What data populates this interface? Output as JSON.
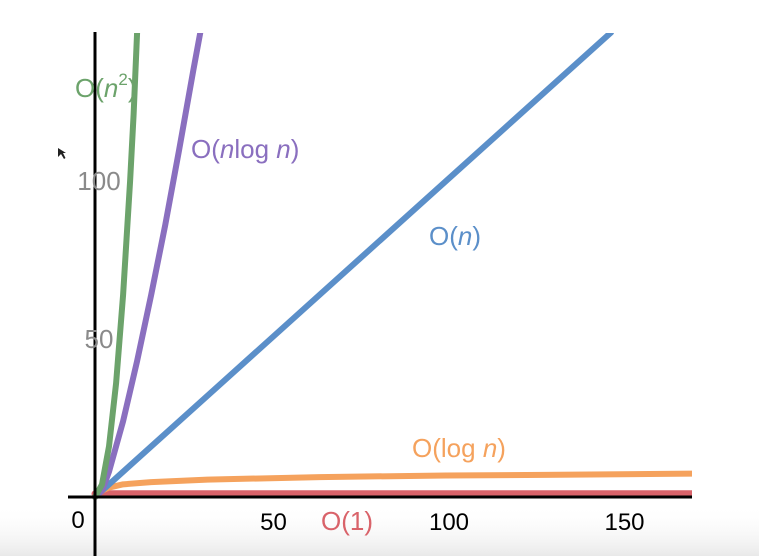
{
  "chart_data": {
    "type": "line",
    "title": "",
    "xlabel": "",
    "ylabel": "",
    "xlim": [
      0,
      170
    ],
    "ylim": [
      0,
      147
    ],
    "x_ticks": [
      "50",
      "100",
      "150"
    ],
    "x_tick_values": [
      50,
      100,
      150
    ],
    "y_ticks": [
      "50",
      "100"
    ],
    "y_tick_values": [
      50,
      100
    ],
    "origin_label": "0",
    "grid": false,
    "series": [
      {
        "name": "O(1)",
        "label_parts": [
          {
            "text": "O(",
            "italic": false
          },
          {
            "text": "1",
            "italic": false
          },
          {
            "text": ")",
            "italic": false
          }
        ],
        "color": "#d9636a",
        "x": [
          0,
          170
        ],
        "y": [
          1,
          1
        ]
      },
      {
        "name": "O(log n)",
        "label_parts": [
          {
            "text": "O(log ",
            "italic": false
          },
          {
            "text": "n",
            "italic": true
          },
          {
            "text": ")",
            "italic": false
          }
        ],
        "color": "#f5a25d",
        "x": [
          0,
          1,
          2,
          4,
          8,
          16,
          32,
          64,
          100,
          128,
          170
        ],
        "y": [
          0,
          1,
          2,
          3,
          4,
          4.7,
          5.5,
          6.3,
          6.8,
          7.0,
          7.4
        ]
      },
      {
        "name": "O(n)",
        "label_parts": [
          {
            "text": "O(",
            "italic": false
          },
          {
            "text": "n",
            "italic": true
          },
          {
            "text": ")",
            "italic": false
          }
        ],
        "color": "#5b8fc9",
        "x": [
          0,
          147
        ],
        "y": [
          0,
          147
        ]
      },
      {
        "name": "O(nlog n)",
        "label_parts": [
          {
            "text": "O(",
            "italic": false
          },
          {
            "text": "n",
            "italic": true
          },
          {
            "text": "log ",
            "italic": false
          },
          {
            "text": "n",
            "italic": true
          },
          {
            "text": ")",
            "italic": false
          }
        ],
        "color": "#8a6fbf",
        "x": [
          0,
          2,
          4,
          8,
          12,
          16,
          20,
          24,
          28,
          30
        ],
        "y": [
          0,
          2,
          8,
          24,
          43,
          64,
          86,
          110,
          135,
          147
        ]
      },
      {
        "name": "O(n²)",
        "label_parts": [
          {
            "text": "O(",
            "italic": false
          },
          {
            "text": "n",
            "italic": true
          },
          {
            "text": "2",
            "italic": false,
            "superscript": true
          },
          {
            "text": ")",
            "italic": false
          }
        ],
        "color": "#6ca36b",
        "x": [
          0,
          2,
          4,
          6,
          8,
          10,
          11,
          12
        ],
        "y": [
          0,
          4,
          16,
          36,
          64,
          100,
          121,
          147
        ]
      }
    ]
  }
}
